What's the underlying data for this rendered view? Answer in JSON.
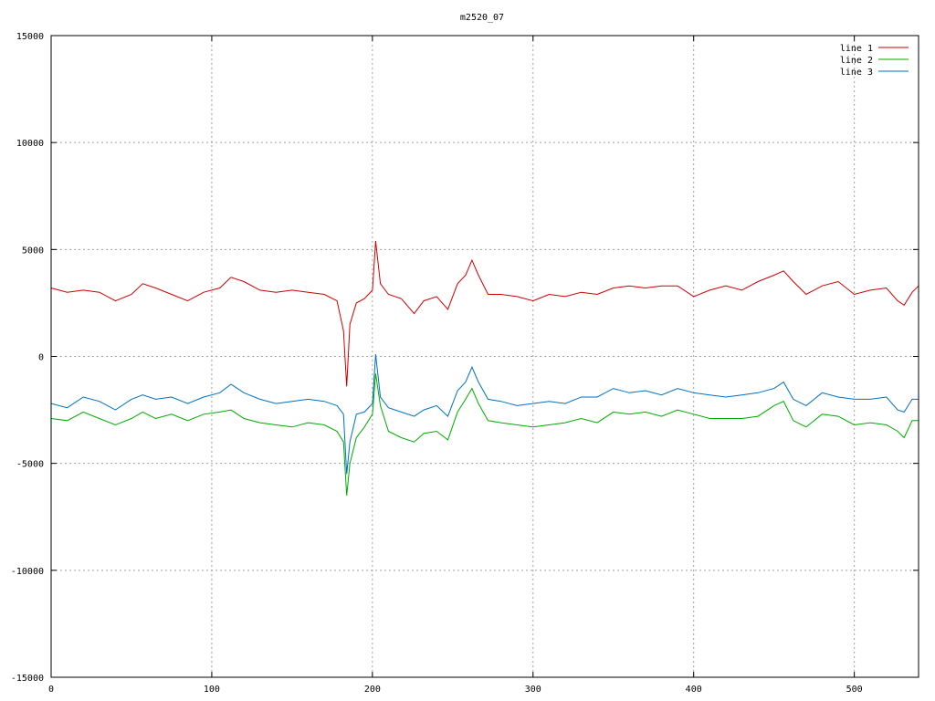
{
  "chart_data": {
    "type": "line",
    "title": "m2520_07",
    "xlabel": "",
    "ylabel": "",
    "xlim": [
      0,
      540
    ],
    "ylim": [
      -15000,
      15000
    ],
    "xticks": [
      0,
      100,
      200,
      300,
      400,
      500
    ],
    "yticks": [
      -15000,
      -10000,
      -5000,
      0,
      5000,
      10000,
      15000
    ],
    "grid": true,
    "legend_position": "top-right",
    "x": [
      0,
      10,
      20,
      30,
      40,
      50,
      57,
      65,
      75,
      85,
      95,
      105,
      112,
      120,
      130,
      140,
      150,
      160,
      170,
      178,
      182,
      184,
      186,
      190,
      195,
      200,
      202,
      205,
      210,
      218,
      226,
      232,
      240,
      247,
      253,
      258,
      262,
      266,
      272,
      280,
      290,
      300,
      310,
      320,
      330,
      340,
      350,
      360,
      370,
      380,
      390,
      400,
      410,
      420,
      430,
      440,
      450,
      456,
      462,
      470,
      480,
      490,
      500,
      510,
      520,
      527,
      531,
      536,
      540
    ],
    "series": [
      {
        "name": "line 1",
        "color": "#cc0000",
        "values": [
          3200,
          3000,
          3100,
          3000,
          2600,
          2900,
          3400,
          3200,
          2900,
          2600,
          3000,
          3200,
          3700,
          3500,
          3100,
          3000,
          3100,
          3000,
          2900,
          2600,
          1200,
          -1400,
          1500,
          2500,
          2700,
          3100,
          5400,
          3400,
          2900,
          2700,
          2000,
          2600,
          2800,
          2200,
          3400,
          3800,
          4500,
          3800,
          2900,
          2900,
          2800,
          2600,
          2900,
          2800,
          3000,
          2900,
          3200,
          3300,
          3200,
          3300,
          3300,
          2800,
          3100,
          3300,
          3100,
          3500,
          3800,
          4000,
          3500,
          2900,
          3300,
          3500,
          2900,
          3100,
          3200,
          2600,
          2400,
          3000,
          3300
        ]
      },
      {
        "name": "line 2",
        "color": "#00aa00",
        "values": [
          -2900,
          -3000,
          -2600,
          -2900,
          -3200,
          -2900,
          -2600,
          -2900,
          -2700,
          -3000,
          -2700,
          -2600,
          -2500,
          -2900,
          -3100,
          -3200,
          -3300,
          -3100,
          -3200,
          -3500,
          -4000,
          -6500,
          -5000,
          -3800,
          -3300,
          -2700,
          -800,
          -2300,
          -3500,
          -3800,
          -4000,
          -3600,
          -3500,
          -3900,
          -2600,
          -2000,
          -1500,
          -2200,
          -3000,
          -3100,
          -3200,
          -3300,
          -3200,
          -3100,
          -2900,
          -3100,
          -2600,
          -2700,
          -2600,
          -2800,
          -2500,
          -2700,
          -2900,
          -2900,
          -2900,
          -2800,
          -2300,
          -2100,
          -3000,
          -3300,
          -2700,
          -2800,
          -3200,
          -3100,
          -3200,
          -3500,
          -3800,
          -3000,
          -3000
        ]
      },
      {
        "name": "line 3",
        "color": "#0070c0",
        "values": [
          -2200,
          -2400,
          -1900,
          -2100,
          -2500,
          -2000,
          -1800,
          -2000,
          -1900,
          -2200,
          -1900,
          -1700,
          -1300,
          -1700,
          -2000,
          -2200,
          -2100,
          -2000,
          -2100,
          -2300,
          -2700,
          -5500,
          -4000,
          -2700,
          -2600,
          -2200,
          100,
          -1900,
          -2400,
          -2600,
          -2800,
          -2500,
          -2300,
          -2800,
          -1600,
          -1200,
          -500,
          -1200,
          -2000,
          -2100,
          -2300,
          -2200,
          -2100,
          -2200,
          -1900,
          -1900,
          -1500,
          -1700,
          -1600,
          -1800,
          -1500,
          -1700,
          -1800,
          -1900,
          -1800,
          -1700,
          -1500,
          -1200,
          -2000,
          -2300,
          -1700,
          -1900,
          -2000,
          -2000,
          -1900,
          -2500,
          -2600,
          -2000,
          -2000
        ]
      }
    ]
  }
}
